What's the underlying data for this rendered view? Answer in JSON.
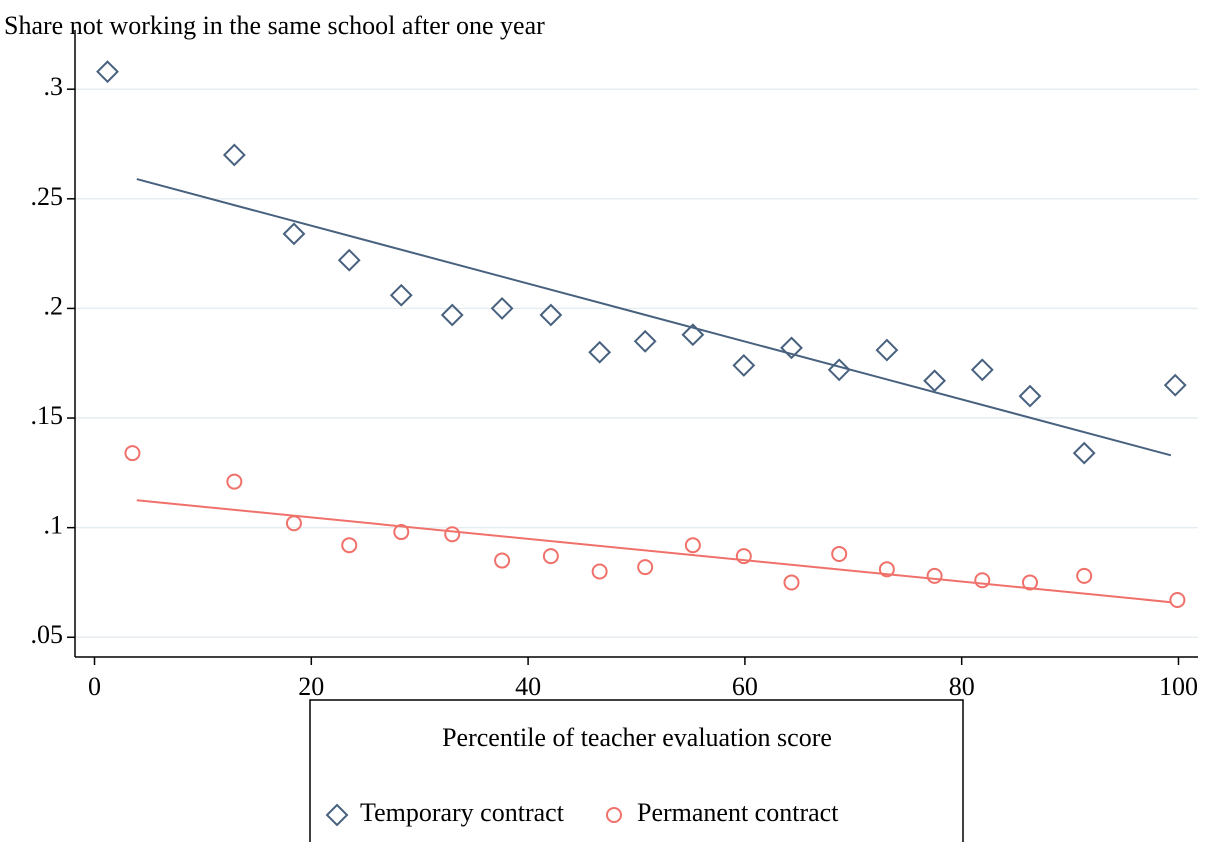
{
  "chart_data": {
    "type": "scatter",
    "title": "Share not working in the same school after one year",
    "x_label": "Percentile of teacher evaluation score",
    "xlim": [
      -1.8,
      101.8
    ],
    "ylim": [
      0.041,
      0.327
    ],
    "xticks": [
      0,
      20,
      40,
      60,
      80,
      100
    ],
    "yticks": [
      {
        "value": 0.05,
        "label": ".05"
      },
      {
        "value": 0.1,
        "label": ".1"
      },
      {
        "value": 0.15,
        "label": ".15"
      },
      {
        "value": 0.2,
        "label": ".2"
      },
      {
        "value": 0.25,
        "label": ".25"
      },
      {
        "value": 0.3,
        "label": ".3"
      }
    ],
    "grid": true,
    "legend": "bottom",
    "series": [
      {
        "name": "Temporary contract",
        "color": "#48617f",
        "marker": "diamond",
        "x": [
          1.2,
          12.9,
          18.4,
          23.5,
          28.3,
          33,
          37.6,
          42.1,
          46.6,
          50.8,
          55.2,
          59.9,
          64.3,
          68.7,
          73.1,
          77.5,
          81.9,
          86.3,
          91.3,
          99.7
        ],
        "values": [
          0.308,
          0.27,
          0.234,
          0.222,
          0.206,
          0.197,
          0.2,
          0.197,
          0.18,
          0.185,
          0.188,
          0.174,
          0.182,
          0.172,
          0.181,
          0.167,
          0.172,
          0.16,
          0.134,
          0.165
        ]
      },
      {
        "name": "Permanent contract",
        "color": "#f0706a",
        "marker": "circle",
        "x": [
          3.5,
          12.9,
          18.4,
          23.5,
          28.3,
          33,
          37.6,
          42.1,
          46.6,
          50.8,
          55.2,
          59.9,
          64.3,
          68.7,
          73.1,
          77.5,
          81.9,
          86.3,
          91.3,
          99.9
        ],
        "values": [
          0.134,
          0.121,
          0.102,
          0.092,
          0.098,
          0.097,
          0.085,
          0.087,
          0.08,
          0.082,
          0.092,
          0.087,
          0.075,
          0.088,
          0.081,
          0.078,
          0.076,
          0.075,
          0.078,
          0.067
        ]
      }
    ],
    "fit_lines": [
      {
        "color": "#48617f",
        "x": [
          3.9,
          99.3
        ],
        "values": [
          0.259,
          0.133
        ]
      },
      {
        "color": "#f0706a",
        "x": [
          3.9,
          99.3
        ],
        "values": [
          0.1125,
          0.066
        ]
      }
    ]
  }
}
